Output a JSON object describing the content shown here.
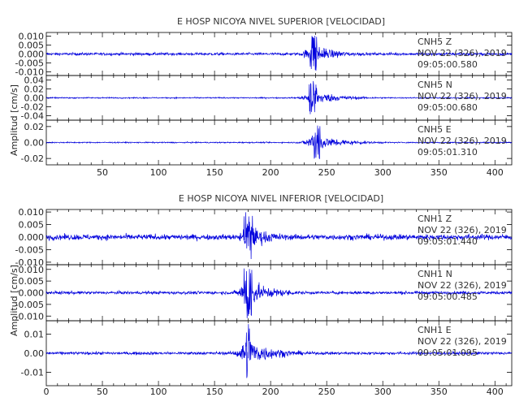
{
  "chart_data": [
    {
      "type": "line",
      "title": "E HOSP NICOYA NIVEL SUPERIOR [VELOCIDAD]",
      "ylabel": "Amplitud [cm/s]",
      "xlabel": "",
      "xlim": [
        0,
        415
      ],
      "x_ticks": [
        50,
        100,
        150,
        200,
        250,
        300,
        350,
        400
      ],
      "grid": false,
      "line_color": "#0000dd",
      "event_onset_x": 235,
      "panels": [
        {
          "name": "CNH5 Z",
          "station": "CNH5",
          "component": "Z",
          "date": "NOV 22 (326), 2019",
          "time": "09:05:00.580",
          "ylim": [
            -0.012,
            0.012
          ],
          "y_ticks": [
            "0.010",
            "0.005",
            "0.000",
            "-0.005",
            "-0.010"
          ],
          "y_tick_values": [
            0.01,
            0.005,
            0.0,
            -0.005,
            -0.01
          ],
          "noise_amplitude": 0.0008,
          "peak_amplitude": 0.011,
          "peak_x": 238
        },
        {
          "name": "CNH5 N",
          "station": "CNH5",
          "component": "N",
          "date": "NOV 22 (326), 2019",
          "time": "09:05:00.680",
          "ylim": [
            -0.05,
            0.05
          ],
          "y_ticks": [
            "0.04",
            "0.02",
            "0.00",
            "-0.02",
            "-0.04"
          ],
          "y_tick_values": [
            0.04,
            0.02,
            0.0,
            -0.02,
            -0.04
          ],
          "noise_amplitude": 0.0015,
          "peak_amplitude": 0.038,
          "peak_x": 238
        },
        {
          "name": "CNH5 E",
          "station": "CNH5",
          "component": "E",
          "date": "NOV 22 (326), 2019",
          "time": "09:05:01.310",
          "ylim": [
            -0.028,
            0.028
          ],
          "y_ticks": [
            "0.02",
            "0.00",
            "-0.02"
          ],
          "y_tick_values": [
            0.02,
            0.0,
            -0.02
          ],
          "noise_amplitude": 0.0008,
          "peak_amplitude": 0.024,
          "peak_x": 240
        }
      ]
    },
    {
      "type": "line",
      "title": "E HOSP NICOYA NIVEL INFERIOR [VELOCIDAD]",
      "ylabel": "Amplitud [cm/s]",
      "xlabel": "",
      "xlim": [
        0,
        415
      ],
      "x_ticks": [
        0,
        50,
        100,
        150,
        200,
        250,
        300,
        350,
        400
      ],
      "grid": false,
      "line_color": "#0000dd",
      "event_onset_x": 175,
      "panels": [
        {
          "name": "CNH1 Z",
          "station": "CNH1",
          "component": "Z",
          "date": "NOV 22 (326), 2019",
          "time": "09:05:01.440",
          "ylim": [
            -0.011,
            0.011
          ],
          "y_ticks": [
            "0.010",
            "0.005",
            "0.000",
            "-0.005",
            "-0.010"
          ],
          "y_tick_values": [
            0.01,
            0.005,
            0.0,
            -0.005,
            -0.01
          ],
          "noise_amplitude": 0.0012,
          "peak_amplitude": 0.0105,
          "peak_x": 180
        },
        {
          "name": "CNH1 N",
          "station": "CNH1",
          "component": "N",
          "date": "NOV 22 (326), 2019",
          "time": "09:05:00.485",
          "ylim": [
            -0.012,
            0.012
          ],
          "y_ticks": [
            "0.010",
            "0.005",
            "0.000",
            "-0.005",
            "-0.010"
          ],
          "y_tick_values": [
            0.01,
            0.005,
            0.0,
            -0.005,
            -0.01
          ],
          "noise_amplitude": 0.0007,
          "peak_amplitude": 0.0115,
          "peak_x": 180
        },
        {
          "name": "CNH1 E",
          "station": "CNH1",
          "component": "E",
          "date": "NOV 22 (326), 2019",
          "time": "09:05:01.095",
          "ylim": [
            -0.017,
            0.017
          ],
          "y_ticks": [
            "0.01",
            "0.00",
            "-0.01"
          ],
          "y_tick_values": [
            0.01,
            0.0,
            -0.01
          ],
          "noise_amplitude": 0.0008,
          "peak_amplitude": 0.016,
          "peak_x": 180
        }
      ]
    }
  ]
}
